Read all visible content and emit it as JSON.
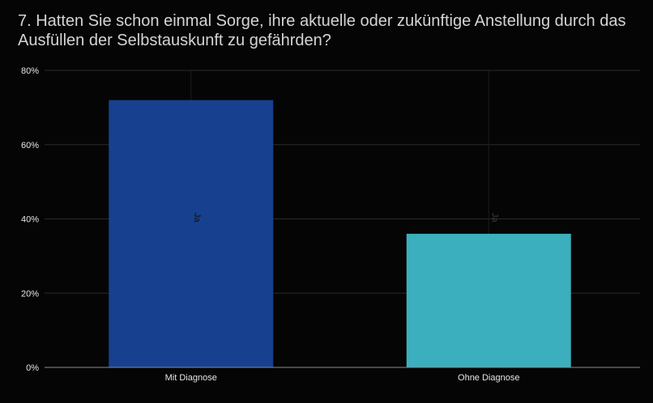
{
  "title_lines": [
    "7. Hatten Sie schon einmal Sorge, ihre aktuelle oder zukünftige Anstellung durch das",
    "Ausfüllen der Selbstauskunft zu gefährden?"
  ],
  "chart_data": {
    "type": "bar",
    "title": "7. Hatten Sie schon einmal Sorge, ihre aktuelle oder zukünftige Anstellung durch das Ausfüllen der Selbstauskunft zu gefährden?",
    "categories": [
      "Mit Diagnose",
      "Ohne Diagnose"
    ],
    "values": [
      72,
      36
    ],
    "bar_labels": [
      "Ja",
      "Ja"
    ],
    "colors": [
      "#17418f",
      "#3bafbd"
    ],
    "yticks": [
      "0%",
      "20%",
      "40%",
      "60%",
      "80%"
    ],
    "ylim": [
      0,
      80
    ],
    "xlabel": "",
    "ylabel": "",
    "grid": true
  }
}
